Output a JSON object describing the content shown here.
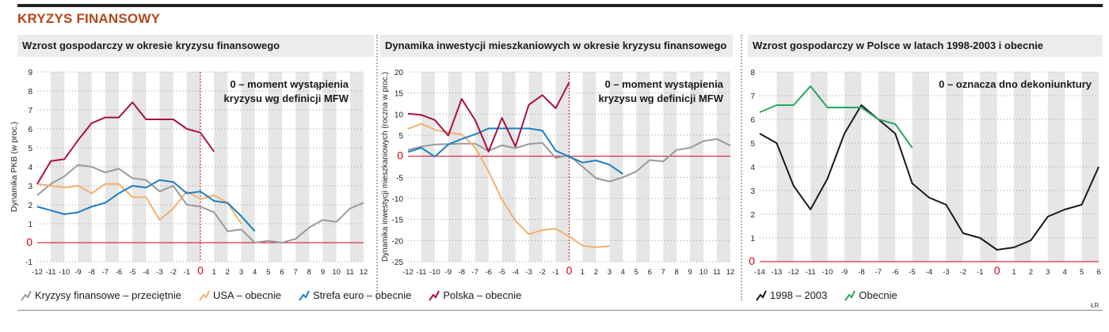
{
  "title": "KRYZYS FINANSOWY",
  "credit": "ŁR",
  "colors": {
    "grey": "#9a9a9a",
    "usa": "#f4b06e",
    "euro": "#1e7fbf",
    "polska": "#a8123f",
    "black": "#1a1a1a",
    "green": "#2aa55a",
    "red": "#d0021b",
    "band": "#e6e6e6"
  },
  "chart_data": [
    {
      "type": "line",
      "title": "Wzrost gospodarczy w okresie kryzysu finansowego",
      "ylabel": "Dynamika PKB (w proc.)",
      "xlabel": "",
      "annotation": [
        "0 – moment wystąpienia",
        "kryzysu wg definicji MFW"
      ],
      "xlim": [
        -12,
        12
      ],
      "ylim": [
        -1,
        9
      ],
      "yticks": [
        -1,
        0,
        1,
        2,
        3,
        4,
        5,
        6,
        7,
        8,
        9
      ],
      "xticks": [
        -12,
        -11,
        -10,
        -9,
        -8,
        -7,
        -6,
        -5,
        -4,
        -3,
        -2,
        -1,
        0,
        1,
        2,
        3,
        4,
        5,
        6,
        7,
        8,
        9,
        10,
        11,
        12
      ],
      "series": [
        {
          "name": "Kryzysy finansowe – przeciętnie",
          "color": "grey",
          "x": [
            -12,
            -11,
            -10,
            -9,
            -8,
            -7,
            -6,
            -5,
            -4,
            -3,
            -2,
            -1,
            0,
            1,
            2,
            3,
            4,
            5,
            6,
            7,
            8,
            9,
            10,
            11,
            12
          ],
          "values": [
            2.5,
            3.1,
            3.5,
            4.1,
            4.0,
            3.7,
            3.9,
            3.4,
            3.3,
            2.7,
            3.0,
            2.0,
            1.9,
            1.6,
            0.6,
            0.7,
            0.0,
            0.1,
            0.0,
            0.2,
            0.8,
            1.2,
            1.1,
            1.8,
            2.1
          ]
        },
        {
          "name": "USA – obecnie",
          "color": "usa",
          "x": [
            -12,
            -11,
            -10,
            -9,
            -8,
            -7,
            -6,
            -5,
            -4,
            -3,
            -2,
            -1,
            0,
            1,
            2,
            3
          ],
          "values": [
            3.1,
            3.0,
            2.9,
            3.0,
            2.6,
            3.1,
            3.1,
            2.4,
            2.4,
            1.2,
            1.8,
            2.7,
            2.3,
            2.5,
            2.1,
            1.0
          ]
        },
        {
          "name": "Strefa euro – obecnie",
          "color": "euro",
          "x": [
            -12,
            -11,
            -10,
            -9,
            -8,
            -7,
            -6,
            -5,
            -4,
            -3,
            -2,
            -1,
            0,
            1,
            2,
            3,
            4
          ],
          "values": [
            1.9,
            1.7,
            1.5,
            1.6,
            1.9,
            2.1,
            2.6,
            3.0,
            2.9,
            3.3,
            3.2,
            2.6,
            2.7,
            2.2,
            2.1,
            1.4,
            0.6
          ]
        },
        {
          "name": "Polska – obecnie",
          "color": "polska",
          "x": [
            -12,
            -11,
            -10,
            -9,
            -8,
            -7,
            -6,
            -5,
            -4,
            -3,
            -2,
            -1,
            0,
            1
          ],
          "values": [
            3.1,
            4.3,
            4.4,
            5.4,
            6.3,
            6.6,
            6.6,
            7.4,
            6.5,
            6.5,
            6.5,
            6.0,
            5.8,
            4.8
          ]
        }
      ]
    },
    {
      "type": "line",
      "title": "Dynamika inwestycji mieszkaniowych w okresie kryzysu finansowego",
      "ylabel": "Dynamika inwestycji mieszkaniowych (roczna w proc.)",
      "xlabel": "",
      "annotation": [
        "0 – moment wystąpienia",
        "kryzysu wg definicji MFW"
      ],
      "xlim": [
        -12,
        12
      ],
      "ylim": [
        -25,
        20
      ],
      "yticks": [
        -25,
        -20,
        -15,
        -10,
        -5,
        0,
        5,
        10,
        15,
        20
      ],
      "xticks": [
        -12,
        -11,
        -10,
        -9,
        -8,
        -7,
        -6,
        -5,
        -4,
        -3,
        -2,
        -1,
        0,
        1,
        2,
        3,
        4,
        5,
        6,
        7,
        8,
        9,
        10,
        11,
        12
      ],
      "series": [
        {
          "name": "Kryzysy finansowe – przeciętnie",
          "color": "grey",
          "x": [
            -12,
            -11,
            -10,
            -9,
            -8,
            -7,
            -6,
            -5,
            -4,
            -3,
            -2,
            -1,
            0,
            1,
            2,
            3,
            4,
            5,
            6,
            7,
            8,
            9,
            10,
            11,
            12
          ],
          "values": [
            1.5,
            2.3,
            2.8,
            2.9,
            3.0,
            3.0,
            1.3,
            2.6,
            1.9,
            2.9,
            3.2,
            -0.4,
            0.2,
            -2.5,
            -5.2,
            -6.0,
            -5.0,
            -3.6,
            -0.9,
            -1.2,
            1.5,
            2.0,
            3.6,
            4.1,
            2.5
          ]
        },
        {
          "name": "USA – obecnie",
          "color": "usa",
          "x": [
            -12,
            -11,
            -10,
            -9,
            -8,
            -7,
            -6,
            -5,
            -4,
            -3,
            -2,
            -1,
            0,
            1,
            2,
            3
          ],
          "values": [
            6.5,
            7.7,
            6.3,
            5.6,
            5.2,
            2.1,
            -3.6,
            -10.3,
            -15.3,
            -18.5,
            -17.5,
            -17.2,
            -19.0,
            -21.2,
            -21.6,
            -21.3
          ]
        },
        {
          "name": "Strefa euro – obecnie",
          "color": "euro",
          "x": [
            -12,
            -11,
            -10,
            -9,
            -8,
            -7,
            -6,
            -5,
            -4,
            -3,
            -2,
            -1,
            0,
            1,
            2,
            3,
            4
          ],
          "values": [
            1.0,
            2.0,
            -0.1,
            2.8,
            4.1,
            5.2,
            6.6,
            6.6,
            6.6,
            6.6,
            6.1,
            1.3,
            -0.1,
            -1.5,
            -1.0,
            -2.0,
            -4.2
          ]
        },
        {
          "name": "Polska – obecnie",
          "color": "polska",
          "x": [
            -12,
            -11,
            -10,
            -9,
            -8,
            -7,
            -6,
            -5,
            -4,
            -3,
            -2,
            -1,
            0
          ],
          "values": [
            10.1,
            9.8,
            8.6,
            4.9,
            13.6,
            8.6,
            1.1,
            9.1,
            2.3,
            12.2,
            14.5,
            11.4,
            17.5
          ]
        }
      ]
    },
    {
      "type": "line",
      "title": "Wzrost gospodarczy w Polsce w latach 1998-2003 i obecnie",
      "ylabel": "",
      "xlabel": "",
      "annotation": [
        "0 – oznacza dno dekoniunktury"
      ],
      "xlim": [
        -14,
        6
      ],
      "ylim": [
        0,
        8
      ],
      "yticks": [
        0,
        1,
        2,
        3,
        4,
        5,
        6,
        7,
        8
      ],
      "xticks": [
        -14,
        -13,
        -12,
        -11,
        -10,
        -9,
        -8,
        -7,
        -6,
        -5,
        -4,
        -3,
        -2,
        -1,
        0,
        1,
        2,
        3,
        4,
        5,
        6
      ],
      "series": [
        {
          "name": "1998 – 2003",
          "color": "black",
          "x": [
            -14,
            -13,
            -12,
            -11,
            -10,
            -9,
            -8,
            -7,
            -6,
            -5,
            -4,
            -3,
            -2,
            -1,
            0,
            1,
            2,
            3,
            4,
            5,
            6
          ],
          "values": [
            5.4,
            5.0,
            3.2,
            2.2,
            3.5,
            5.4,
            6.6,
            6.0,
            5.4,
            3.3,
            2.7,
            2.4,
            1.2,
            1.0,
            0.5,
            0.6,
            0.9,
            1.9,
            2.2,
            2.4,
            4.0
          ]
        },
        {
          "name": "Obecnie",
          "color": "green",
          "x": [
            -14,
            -13,
            -12,
            -11,
            -10,
            -9,
            -8,
            -7,
            -6,
            -5
          ],
          "values": [
            6.3,
            6.6,
            6.6,
            7.4,
            6.5,
            6.5,
            6.5,
            6.0,
            5.8,
            4.8
          ]
        }
      ]
    }
  ],
  "legend_left": [
    {
      "label": "Kryzysy finansowe – przeciętnie",
      "color": "grey"
    },
    {
      "label": "USA – obecnie",
      "color": "usa"
    },
    {
      "label": "Strefa euro – obecnie",
      "color": "euro"
    },
    {
      "label": "Polska – obecnie",
      "color": "polska"
    }
  ],
  "legend_right": [
    {
      "label": "1998 – 2003",
      "color": "black"
    },
    {
      "label": "Obecnie",
      "color": "green"
    }
  ]
}
